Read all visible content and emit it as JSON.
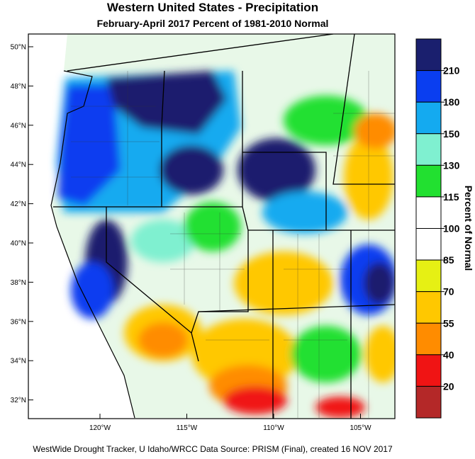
{
  "title": "Western United States - Precipitation",
  "subtitle": "February-April 2017  Percent of 1981-2010 Normal",
  "latitude_labels": [
    "50°N",
    "48°N",
    "46°N",
    "44°N",
    "42°N",
    "40°N",
    "38°N",
    "36°N",
    "34°N",
    "32°N"
  ],
  "longitude_labels": [
    "120°W",
    "115°W",
    "110°W",
    "105°W"
  ],
  "colorbar": {
    "label": "Percent of Normal",
    "levels": [
      210,
      180,
      150,
      130,
      115,
      100,
      85,
      70,
      55,
      40,
      20
    ],
    "colors": [
      "#1a1f6e",
      "#0a3ef0",
      "#14aaf0",
      "#7ff0d0",
      "#22e030",
      "#ffffff",
      "#ffffff",
      "#e6f014",
      "#ffc800",
      "#ff8c00",
      "#f01414",
      "#b42828"
    ]
  },
  "footer": "WestWide Drought Tracker, U Idaho/WRCC Data Source: PRISM (Final), created 16 NOV 2017"
}
